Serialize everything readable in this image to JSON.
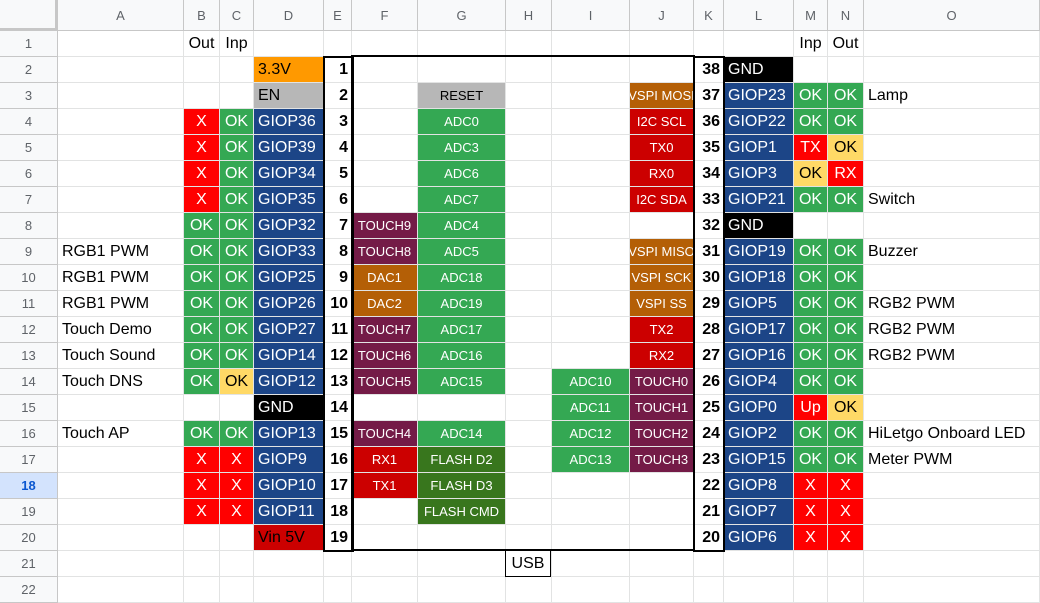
{
  "columns": [
    "A",
    "B",
    "C",
    "D",
    "E",
    "F",
    "G",
    "H",
    "I",
    "J",
    "K",
    "L",
    "M",
    "N",
    "O"
  ],
  "rows": [
    "1",
    "2",
    "3",
    "4",
    "5",
    "6",
    "7",
    "8",
    "9",
    "10",
    "11",
    "12",
    "13",
    "14",
    "15",
    "16",
    "17",
    "18",
    "19",
    "20",
    "21",
    "22"
  ],
  "selected_row": "18",
  "headers": {
    "B": "Out",
    "C": "Inp",
    "M": "Inp",
    "N": "Out"
  },
  "usb_label": "USB",
  "colors": {
    "green": "#34a853",
    "red": "#ff0000",
    "blue": "#1c4587",
    "orange": "#ff9900",
    "gray": "#b7b7b7",
    "black": "#000000",
    "yellow": "#ffd966",
    "purple": "#741b47",
    "darkred": "#cc0000",
    "darkorange": "#b45f06",
    "darkgreen": "#38761d",
    "vindark": "#cc0000"
  },
  "left": [
    {
      "row": 2,
      "gpio": "3.3V",
      "pin": "1",
      "gcol": "orange"
    },
    {
      "row": 3,
      "gpio": "EN",
      "pin": "2",
      "gcol": "gray",
      "g": "RESET",
      "gc": "gray"
    },
    {
      "row": 4,
      "out": "X",
      "oc": "red",
      "inp": "OK",
      "ic": "green",
      "gpio": "GIOP36",
      "pin": "3",
      "gcol": "blue",
      "g": "ADC0",
      "gc": "green"
    },
    {
      "row": 5,
      "out": "X",
      "oc": "red",
      "inp": "OK",
      "ic": "green",
      "gpio": "GIOP39",
      "pin": "4",
      "gcol": "blue",
      "g": "ADC3",
      "gc": "green"
    },
    {
      "row": 6,
      "out": "X",
      "oc": "red",
      "inp": "OK",
      "ic": "green",
      "gpio": "GIOP34",
      "pin": "5",
      "gcol": "blue",
      "g": "ADC6",
      "gc": "green"
    },
    {
      "row": 7,
      "out": "X",
      "oc": "red",
      "inp": "OK",
      "ic": "green",
      "gpio": "GIOP35",
      "pin": "6",
      "gcol": "blue",
      "g": "ADC7",
      "gc": "green"
    },
    {
      "row": 8,
      "out": "OK",
      "oc": "green",
      "inp": "OK",
      "ic": "green",
      "gpio": "GIOP32",
      "pin": "7",
      "gcol": "blue",
      "f": "TOUCH9",
      "fc": "purple",
      "g": "ADC4",
      "gc": "green"
    },
    {
      "row": 9,
      "label": "RGB1 PWM",
      "out": "OK",
      "oc": "green",
      "inp": "OK",
      "ic": "green",
      "gpio": "GIOP33",
      "pin": "8",
      "gcol": "blue",
      "f": "TOUCH8",
      "fc": "purple",
      "g": "ADC5",
      "gc": "green"
    },
    {
      "row": 10,
      "label": "RGB1 PWM",
      "out": "OK",
      "oc": "green",
      "inp": "OK",
      "ic": "green",
      "gpio": "GIOP25",
      "pin": "9",
      "gcol": "blue",
      "f": "DAC1",
      "fc": "darkorange",
      "g": "ADC18",
      "gc": "green"
    },
    {
      "row": 11,
      "label": "RGB1 PWM",
      "out": "OK",
      "oc": "green",
      "inp": "OK",
      "ic": "green",
      "gpio": "GIOP26",
      "pin": "10",
      "gcol": "blue",
      "f": "DAC2",
      "fc": "darkorange",
      "g": "ADC19",
      "gc": "green"
    },
    {
      "row": 12,
      "label": "Touch Demo",
      "out": "OK",
      "oc": "green",
      "inp": "OK",
      "ic": "green",
      "gpio": "GIOP27",
      "pin": "11",
      "gcol": "blue",
      "f": "TOUCH7",
      "fc": "purple",
      "g": "ADC17",
      "gc": "green"
    },
    {
      "row": 13,
      "label": "Touch Sound",
      "out": "OK",
      "oc": "green",
      "inp": "OK",
      "ic": "green",
      "gpio": "GIOP14",
      "pin": "12",
      "gcol": "blue",
      "f": "TOUCH6",
      "fc": "purple",
      "g": "ADC16",
      "gc": "green"
    },
    {
      "row": 14,
      "label": "Touch DNS",
      "out": "OK",
      "oc": "green",
      "inp": "OK",
      "ic": "yellow",
      "gpio": "GIOP12",
      "pin": "13",
      "gcol": "blue",
      "f": "TOUCH5",
      "fc": "purple",
      "g": "ADC15",
      "gc": "green"
    },
    {
      "row": 15,
      "gpio": "GND",
      "pin": "14",
      "gcol": "black"
    },
    {
      "row": 16,
      "label": "Touch AP",
      "out": "OK",
      "oc": "green",
      "inp": "OK",
      "ic": "green",
      "gpio": "GIOP13",
      "pin": "15",
      "gcol": "blue",
      "f": "TOUCH4",
      "fc": "purple",
      "g": "ADC14",
      "gc": "green"
    },
    {
      "row": 17,
      "out": "X",
      "oc": "red",
      "inp": "X",
      "ic": "red",
      "gpio": "GIOP9",
      "pin": "16",
      "gcol": "blue",
      "f": "RX1",
      "fc": "darkred",
      "g": "FLASH D2",
      "gc": "darkgreen"
    },
    {
      "row": 18,
      "out": "X",
      "oc": "red",
      "inp": "X",
      "ic": "red",
      "gpio": "GIOP10",
      "pin": "17",
      "gcol": "blue",
      "f": "TX1",
      "fc": "darkred",
      "g": "FLASH D3",
      "gc": "darkgreen"
    },
    {
      "row": 19,
      "out": "X",
      "oc": "red",
      "inp": "X",
      "ic": "red",
      "gpio": "GIOP11",
      "pin": "18",
      "gcol": "blue",
      "g": "FLASH CMD",
      "gc": "darkgreen"
    },
    {
      "row": 20,
      "gpio": "Vin 5V",
      "pin": "19",
      "gcol": "vindark"
    }
  ],
  "right": [
    {
      "row": 2,
      "pin": "38",
      "gpio": "GND",
      "gcol": "black"
    },
    {
      "row": 3,
      "j": "VSPI MOSI",
      "jc": "darkorange",
      "pin": "37",
      "gpio": "GIOP23",
      "gcol": "blue",
      "inp": "OK",
      "ic": "green",
      "out": "OK",
      "oc": "green",
      "label": "Lamp"
    },
    {
      "row": 4,
      "j": "I2C SCL",
      "jc": "darkred",
      "pin": "36",
      "gpio": "GIOP22",
      "gcol": "blue",
      "inp": "OK",
      "ic": "green",
      "out": "OK",
      "oc": "green"
    },
    {
      "row": 5,
      "j": "TX0",
      "jc": "darkred",
      "pin": "35",
      "gpio": "GIOP1",
      "gcol": "blue",
      "inp": "TX",
      "ic": "red",
      "out": "OK",
      "oc": "yellow"
    },
    {
      "row": 6,
      "j": "RX0",
      "jc": "darkred",
      "pin": "34",
      "gpio": "GIOP3",
      "gcol": "blue",
      "inp": "OK",
      "ic": "yellow",
      "out": "RX",
      "oc": "red"
    },
    {
      "row": 7,
      "j": "I2C SDA",
      "jc": "darkred",
      "pin": "33",
      "gpio": "GIOP21",
      "gcol": "blue",
      "inp": "OK",
      "ic": "green",
      "out": "OK",
      "oc": "green",
      "label": "Switch"
    },
    {
      "row": 8,
      "pin": "32",
      "gpio": "GND",
      "gcol": "black"
    },
    {
      "row": 9,
      "j": "VSPI MISO",
      "jc": "darkorange",
      "pin": "31",
      "gpio": "GIOP19",
      "gcol": "blue",
      "inp": "OK",
      "ic": "green",
      "out": "OK",
      "oc": "green",
      "label": "Buzzer"
    },
    {
      "row": 10,
      "j": "VSPI SCK",
      "jc": "darkorange",
      "pin": "30",
      "gpio": "GIOP18",
      "gcol": "blue",
      "inp": "OK",
      "ic": "green",
      "out": "OK",
      "oc": "green"
    },
    {
      "row": 11,
      "j": "VSPI SS",
      "jc": "darkorange",
      "pin": "29",
      "gpio": "GIOP5",
      "gcol": "blue",
      "inp": "OK",
      "ic": "green",
      "out": "OK",
      "oc": "green",
      "label": "RGB2 PWM"
    },
    {
      "row": 12,
      "j": "TX2",
      "jc": "darkred",
      "pin": "28",
      "gpio": "GIOP17",
      "gcol": "blue",
      "inp": "OK",
      "ic": "green",
      "out": "OK",
      "oc": "green",
      "label": "RGB2 PWM"
    },
    {
      "row": 13,
      "j": "RX2",
      "jc": "darkred",
      "pin": "27",
      "gpio": "GIOP16",
      "gcol": "blue",
      "inp": "OK",
      "ic": "green",
      "out": "OK",
      "oc": "green",
      "label": "RGB2 PWM"
    },
    {
      "row": 14,
      "i": "ADC10",
      "j": "TOUCH0",
      "jc": "purple",
      "pin": "26",
      "gpio": "GIOP4",
      "gcol": "blue",
      "inp": "OK",
      "ic": "green",
      "out": "OK",
      "oc": "green"
    },
    {
      "row": 15,
      "i": "ADC11",
      "j": "TOUCH1",
      "jc": "purple",
      "pin": "25",
      "gpio": "GIOP0",
      "gcol": "blue",
      "inp": "Up",
      "ic": "red",
      "out": "OK",
      "oc": "yellow"
    },
    {
      "row": 16,
      "i": "ADC12",
      "j": "TOUCH2",
      "jc": "purple",
      "pin": "24",
      "gpio": "GIOP2",
      "gcol": "blue",
      "inp": "OK",
      "ic": "green",
      "out": "OK",
      "oc": "green",
      "label": "HiLetgo Onboard LED"
    },
    {
      "row": 17,
      "i": "ADC13",
      "j": "TOUCH3",
      "jc": "purple",
      "pin": "23",
      "gpio": "GIOP15",
      "gcol": "blue",
      "inp": "OK",
      "ic": "green",
      "out": "OK",
      "oc": "green",
      "label": "Meter PWM"
    },
    {
      "row": 18,
      "pin": "22",
      "gpio": "GIOP8",
      "gcol": "blue",
      "inp": "X",
      "ic": "red",
      "out": "X",
      "oc": "red"
    },
    {
      "row": 19,
      "pin": "21",
      "gpio": "GIOP7",
      "gcol": "blue",
      "inp": "X",
      "ic": "red",
      "out": "X",
      "oc": "red"
    },
    {
      "row": 20,
      "pin": "20",
      "gpio": "GIOP6",
      "gcol": "blue",
      "inp": "X",
      "ic": "red",
      "out": "X",
      "oc": "red"
    }
  ]
}
